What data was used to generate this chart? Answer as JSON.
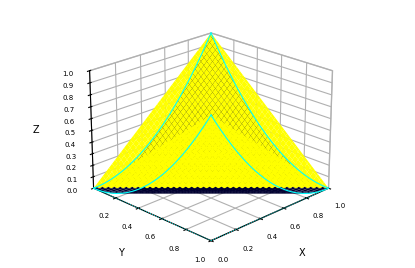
{
  "xlabel": "X",
  "ylabel": "Y",
  "zlabel": "Z",
  "n_points": 80,
  "background_color": "#ffffff",
  "capacity_color": "#ffff00",
  "determinant_color": "#000030",
  "edge_color": "cyan",
  "view_elev": 22,
  "view_azim": 225
}
